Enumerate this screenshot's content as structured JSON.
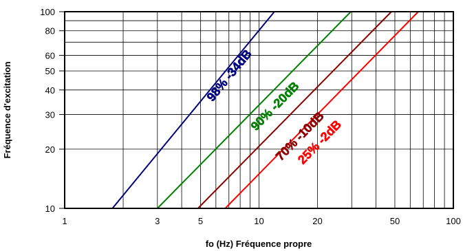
{
  "chart_data": {
    "type": "line",
    "xlabel": "fo (Hz) Fréquence propre",
    "ylabel": "Fréquence d'excitation",
    "xscale": "log",
    "yscale": "log",
    "xlim": [
      1,
      100
    ],
    "ylim": [
      10,
      100
    ],
    "xticks": [
      1,
      3,
      5,
      10,
      20,
      50,
      100
    ],
    "yticks": [
      10,
      20,
      30,
      40,
      50,
      60,
      80,
      100
    ],
    "grid": true,
    "series": [
      {
        "name": "98% -34dB",
        "color": "#00007f",
        "x": [
          1.76,
          12.0
        ],
        "y": [
          10,
          100
        ]
      },
      {
        "name": "90% -20dB",
        "color": "#008000",
        "x": [
          3.0,
          29.7
        ],
        "y": [
          10,
          100
        ]
      },
      {
        "name": "70% -10dB",
        "color": "#8b0000",
        "x": [
          4.85,
          48.0
        ],
        "y": [
          10,
          100
        ]
      },
      {
        "name": "25% -2dB",
        "color": "#ff0000",
        "x": [
          6.7,
          66.0
        ],
        "y": [
          10,
          100
        ]
      }
    ],
    "annotations": [
      {
        "text": "98% -34dB",
        "series": 0,
        "x": 7.3,
        "y": 46
      },
      {
        "text": "90% -20dB",
        "series": 1,
        "x": 12.5,
        "y": 32
      },
      {
        "text": "70% -10dB",
        "series": 2,
        "x": 16.8,
        "y": 22.5
      },
      {
        "text": "25% -2dB",
        "series": 3,
        "x": 21.2,
        "y": 21
      }
    ]
  }
}
